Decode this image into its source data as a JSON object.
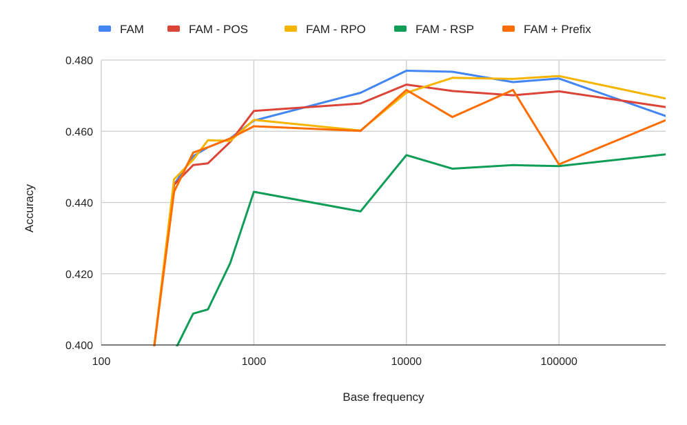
{
  "chart_data": {
    "type": "line",
    "title": "",
    "xlabel": "Base frequency",
    "ylabel": "Accuracy",
    "x_scale": "log",
    "xlim": [
      100,
      500000
    ],
    "ylim": [
      0.4,
      0.48
    ],
    "x_ticks": [
      100,
      1000,
      10000,
      100000
    ],
    "x_tick_labels": [
      "100",
      "1000",
      "10000",
      "100000"
    ],
    "y_ticks": [
      0.4,
      0.42,
      0.44,
      0.46,
      0.48
    ],
    "y_tick_labels": [
      "0.400",
      "0.420",
      "0.440",
      "0.460",
      "0.480"
    ],
    "grid": true,
    "legend_position": "top",
    "series": [
      {
        "name": "FAM",
        "color": "#4285F4",
        "x": [
          220,
          300,
          400,
          500,
          700,
          1000,
          5000,
          10000,
          20000,
          50000,
          100000,
          500000
        ],
        "y": [
          0.398,
          0.445,
          0.453,
          0.4555,
          0.458,
          0.463,
          0.4708,
          0.477,
          0.4767,
          0.4738,
          0.4748,
          0.4643
        ]
      },
      {
        "name": "FAM - POS",
        "color": "#DB4437",
        "x": [
          220,
          300,
          400,
          500,
          700,
          1000,
          5000,
          10000,
          20000,
          50000,
          100000,
          500000
        ],
        "y": [
          0.398,
          0.445,
          0.4505,
          0.451,
          0.457,
          0.4657,
          0.4678,
          0.4731,
          0.4713,
          0.4701,
          0.4712,
          0.4668
        ]
      },
      {
        "name": "FAM - RPO",
        "color": "#F4B400",
        "x": [
          220,
          300,
          400,
          500,
          700,
          1000,
          5000,
          10000,
          20000,
          50000,
          100000,
          500000
        ],
        "y": [
          0.398,
          0.4465,
          0.452,
          0.4575,
          0.4573,
          0.4632,
          0.4602,
          0.4708,
          0.475,
          0.4747,
          0.4755,
          0.4692
        ]
      },
      {
        "name": "FAM - RSP",
        "color": "#0F9D58",
        "x": [
          300,
          400,
          500,
          700,
          1000,
          5000,
          10000,
          20000,
          50000,
          100000,
          500000
        ],
        "y": [
          0.398,
          0.4088,
          0.41,
          0.423,
          0.443,
          0.4375,
          0.4533,
          0.4495,
          0.4505,
          0.4502,
          0.4535
        ]
      },
      {
        "name": "FAM + Prefix",
        "color": "#FF6D01",
        "x": [
          220,
          300,
          400,
          500,
          700,
          1000,
          5000,
          10000,
          20000,
          50000,
          100000,
          500000
        ],
        "y": [
          0.398,
          0.443,
          0.454,
          0.4555,
          0.458,
          0.4614,
          0.4601,
          0.4716,
          0.464,
          0.4716,
          0.4507,
          0.4631
        ]
      }
    ]
  }
}
